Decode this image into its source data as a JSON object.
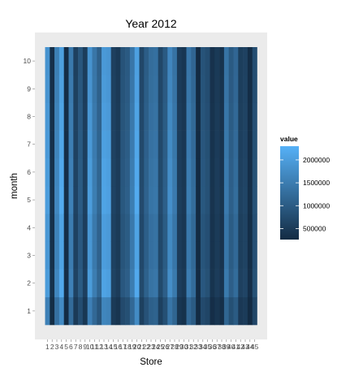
{
  "chart_data": {
    "type": "heatmap",
    "title": "Year 2012",
    "xlabel": "Store",
    "ylabel": "month",
    "x": [
      1,
      2,
      3,
      4,
      5,
      6,
      7,
      8,
      9,
      10,
      11,
      12,
      13,
      14,
      15,
      16,
      17,
      18,
      19,
      20,
      21,
      22,
      23,
      24,
      25,
      26,
      27,
      28,
      29,
      30,
      31,
      32,
      33,
      34,
      35,
      36,
      37,
      38,
      39,
      40,
      41,
      42,
      43,
      44,
      45
    ],
    "x_tick_labels": [
      "1",
      "2",
      "3",
      "4",
      "5",
      "6",
      "7",
      "8",
      "9",
      "10",
      "11",
      "12",
      "13",
      "14",
      "15",
      "16",
      "17",
      "18",
      "19",
      "20",
      "21",
      "22",
      "23",
      "24",
      "25",
      "26",
      "27",
      "28",
      "29",
      "30",
      "31",
      "32",
      "33",
      "34",
      "35",
      "36",
      "37",
      "38",
      "39",
      "40",
      "41",
      "42",
      "43",
      "44",
      "45"
    ],
    "y": [
      1,
      2,
      3,
      4,
      5,
      6,
      7,
      8,
      9,
      10
    ],
    "y_tick_labels": [
      "1",
      "2",
      "3",
      "4",
      "5",
      "6",
      "7",
      "8",
      "9",
      "10"
    ],
    "store_base_values": [
      1900000,
      350000,
      1600000,
      2100000,
      300000,
      1500000,
      600000,
      950000,
      550000,
      1900000,
      1450000,
      1100000,
      2000000,
      1950000,
      600000,
      500000,
      900000,
      1000000,
      1450000,
      2100000,
      700000,
      1050000,
      1300000,
      1350000,
      700000,
      1000000,
      1700000,
      1400000,
      520000,
      440000,
      1450000,
      1200000,
      250000,
      900000,
      800000,
      380000,
      500000,
      400000,
      1400000,
      1000000,
      1200000,
      560000,
      620000,
      300000,
      800000
    ],
    "month_multipliers": [
      0.82,
      1.04,
      1.0,
      1.0,
      1.05,
      1.04,
      1.02,
      1.0,
      0.98,
      0.97
    ],
    "legend": {
      "title": "value",
      "ticks": [
        500000,
        1000000,
        1500000,
        2000000
      ],
      "tick_labels": [
        "500000",
        "1000000",
        "1500000",
        "2000000"
      ],
      "range": [
        260000,
        2300000
      ],
      "placement": "right"
    },
    "colors": {
      "low": "#132B43",
      "high": "#56B1F7",
      "panel_background": "#ebebeb",
      "tick_color": "#7f7f7f"
    }
  }
}
